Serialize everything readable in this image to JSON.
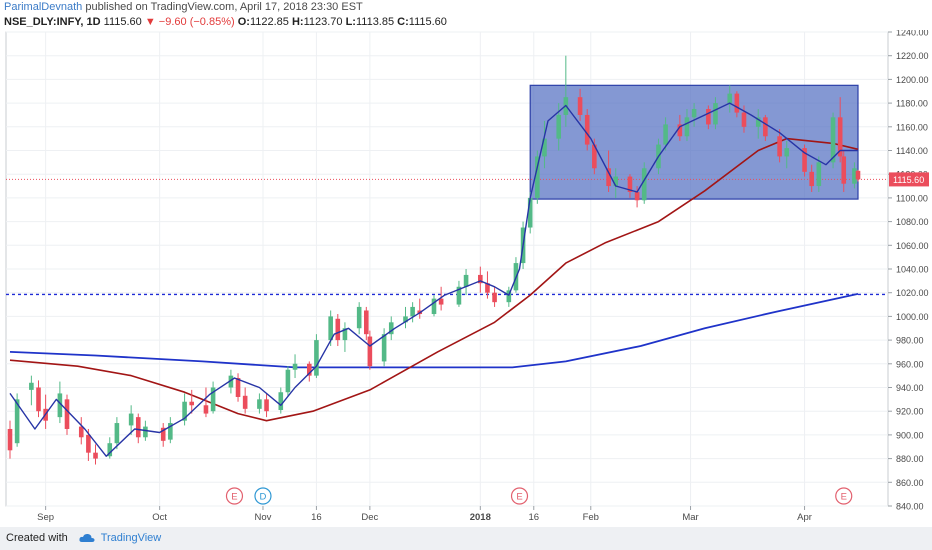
{
  "header": {
    "author": "ParimalDevnath",
    "published": "published on TradingView.com, April 17, 2018 23:30 EST",
    "symbol": "NSE_DLY:INFY, 1D",
    "last": "1115.60",
    "change": "▼ −9.60 (−0.85%)",
    "open_label": "O:",
    "open": "1122.85",
    "high_label": "H:",
    "high": "1123.70",
    "low_label": "L:",
    "low": "1113.85",
    "close_label": "C:",
    "close": "1115.60"
  },
  "footer": {
    "created_with": "Created with",
    "brand": "TradingView"
  },
  "colors": {
    "up": "#53b987",
    "down": "#eb4d5c",
    "sma_short": "#2734a6",
    "sma_mid": "#a21515",
    "sma_long": "#1f33c9",
    "support_line": "#1f2bd6",
    "range_box": "#5470c2",
    "price_line": "#eb4d5c",
    "grid": "#eef0f3",
    "axis_text": "#4a4a4a"
  },
  "chart_data": {
    "type": "candlestick",
    "ylim": [
      840,
      1240
    ],
    "y_ticks": [
      840,
      860,
      880,
      900,
      920,
      940,
      960,
      980,
      1000,
      1020,
      1040,
      1060,
      1080,
      1100,
      1120,
      1140,
      1160,
      1180,
      1200,
      1220,
      1240
    ],
    "x_labels": [
      {
        "label": "Sep",
        "date": "2017-09-01"
      },
      {
        "label": "Oct",
        "date": "2017-10-03"
      },
      {
        "label": "Nov",
        "date": "2017-11-01"
      },
      {
        "label": "16",
        "date": "2017-11-16"
      },
      {
        "label": "Dec",
        "date": "2017-12-01"
      },
      {
        "label": "2018",
        "date": "2018-01-01"
      },
      {
        "label": "16",
        "date": "2018-01-16"
      },
      {
        "label": "Feb",
        "date": "2018-02-01"
      },
      {
        "label": "Mar",
        "date": "2018-03-01"
      },
      {
        "label": "Apr",
        "date": "2018-04-02"
      }
    ],
    "date_range": [
      "2017-08-22",
      "2018-04-17"
    ],
    "last_price": 1115.6,
    "support_level": 1018.5,
    "range_box": {
      "start": "2018-01-15",
      "end": "2018-04-17",
      "low": 1099,
      "high": 1195
    },
    "events": [
      {
        "label": "E",
        "date": "2017-10-24",
        "kind": "earnings"
      },
      {
        "label": "D",
        "date": "2017-11-01",
        "kind": "dividend"
      },
      {
        "label": "E",
        "date": "2018-01-12",
        "kind": "earnings"
      },
      {
        "label": "E",
        "date": "2018-04-13",
        "kind": "earnings"
      }
    ],
    "sma_long": [
      {
        "date": "2017-08-22",
        "value": 970
      },
      {
        "date": "2017-09-15",
        "value": 967
      },
      {
        "date": "2017-10-15",
        "value": 962
      },
      {
        "date": "2017-11-10",
        "value": 957
      },
      {
        "date": "2017-12-15",
        "value": 957
      },
      {
        "date": "2018-01-10",
        "value": 957
      },
      {
        "date": "2018-01-25",
        "value": 962
      },
      {
        "date": "2018-02-15",
        "value": 975
      },
      {
        "date": "2018-03-05",
        "value": 990
      },
      {
        "date": "2018-03-25",
        "value": 1004
      },
      {
        "date": "2018-04-17",
        "value": 1019
      }
    ],
    "sma_mid": [
      {
        "date": "2017-08-22",
        "value": 963
      },
      {
        "date": "2017-09-10",
        "value": 958
      },
      {
        "date": "2017-09-25",
        "value": 950
      },
      {
        "date": "2017-10-10",
        "value": 936
      },
      {
        "date": "2017-10-25",
        "value": 918
      },
      {
        "date": "2017-11-02",
        "value": 912
      },
      {
        "date": "2017-11-15",
        "value": 920
      },
      {
        "date": "2017-12-01",
        "value": 938
      },
      {
        "date": "2017-12-20",
        "value": 970
      },
      {
        "date": "2018-01-05",
        "value": 995
      },
      {
        "date": "2018-01-15",
        "value": 1018
      },
      {
        "date": "2018-01-25",
        "value": 1045
      },
      {
        "date": "2018-02-05",
        "value": 1062
      },
      {
        "date": "2018-02-20",
        "value": 1080
      },
      {
        "date": "2018-03-05",
        "value": 1106
      },
      {
        "date": "2018-03-20",
        "value": 1140
      },
      {
        "date": "2018-03-28",
        "value": 1150
      },
      {
        "date": "2018-04-10",
        "value": 1146
      },
      {
        "date": "2018-04-17",
        "value": 1141
      }
    ],
    "sma_short": [
      {
        "date": "2017-08-22",
        "value": 935
      },
      {
        "date": "2017-08-29",
        "value": 905
      },
      {
        "date": "2017-09-04",
        "value": 930
      },
      {
        "date": "2017-09-12",
        "value": 905
      },
      {
        "date": "2017-09-18",
        "value": 882
      },
      {
        "date": "2017-09-26",
        "value": 905
      },
      {
        "date": "2017-10-03",
        "value": 902
      },
      {
        "date": "2017-10-10",
        "value": 914
      },
      {
        "date": "2017-10-17",
        "value": 934
      },
      {
        "date": "2017-10-24",
        "value": 948
      },
      {
        "date": "2017-10-31",
        "value": 940
      },
      {
        "date": "2017-11-06",
        "value": 925
      },
      {
        "date": "2017-11-10",
        "value": 940
      },
      {
        "date": "2017-11-16",
        "value": 958
      },
      {
        "date": "2017-11-21",
        "value": 985
      },
      {
        "date": "2017-11-25",
        "value": 990
      },
      {
        "date": "2017-12-01",
        "value": 975
      },
      {
        "date": "2017-12-08",
        "value": 990
      },
      {
        "date": "2017-12-15",
        "value": 1003
      },
      {
        "date": "2017-12-22",
        "value": 1018
      },
      {
        "date": "2018-01-01",
        "value": 1030
      },
      {
        "date": "2018-01-05",
        "value": 1025
      },
      {
        "date": "2018-01-09",
        "value": 1018
      },
      {
        "date": "2018-01-12",
        "value": 1040
      },
      {
        "date": "2018-01-15",
        "value": 1100
      },
      {
        "date": "2018-01-20",
        "value": 1165
      },
      {
        "date": "2018-01-25",
        "value": 1178
      },
      {
        "date": "2018-02-01",
        "value": 1150
      },
      {
        "date": "2018-02-08",
        "value": 1110
      },
      {
        "date": "2018-02-14",
        "value": 1105
      },
      {
        "date": "2018-02-20",
        "value": 1135
      },
      {
        "date": "2018-02-26",
        "value": 1160
      },
      {
        "date": "2018-03-05",
        "value": 1170
      },
      {
        "date": "2018-03-12",
        "value": 1180
      },
      {
        "date": "2018-03-18",
        "value": 1170
      },
      {
        "date": "2018-03-26",
        "value": 1155
      },
      {
        "date": "2018-04-02",
        "value": 1138
      },
      {
        "date": "2018-04-08",
        "value": 1128
      },
      {
        "date": "2018-04-12",
        "value": 1140
      },
      {
        "date": "2018-04-17",
        "value": 1140
      }
    ],
    "candles": [
      {
        "date": "2017-08-22",
        "o": 905,
        "h": 912,
        "l": 880,
        "c": 887
      },
      {
        "date": "2017-08-24",
        "o": 893,
        "h": 935,
        "l": 890,
        "c": 930
      },
      {
        "date": "2017-08-28",
        "o": 938,
        "h": 950,
        "l": 925,
        "c": 944
      },
      {
        "date": "2017-08-30",
        "o": 940,
        "h": 946,
        "l": 915,
        "c": 920
      },
      {
        "date": "2017-09-01",
        "o": 922,
        "h": 934,
        "l": 905,
        "c": 912
      },
      {
        "date": "2017-09-05",
        "o": 915,
        "h": 945,
        "l": 910,
        "c": 935
      },
      {
        "date": "2017-09-07",
        "o": 930,
        "h": 934,
        "l": 900,
        "c": 905
      },
      {
        "date": "2017-09-11",
        "o": 907,
        "h": 915,
        "l": 892,
        "c": 898
      },
      {
        "date": "2017-09-13",
        "o": 900,
        "h": 905,
        "l": 878,
        "c": 885
      },
      {
        "date": "2017-09-15",
        "o": 885,
        "h": 892,
        "l": 875,
        "c": 880
      },
      {
        "date": "2017-09-19",
        "o": 882,
        "h": 898,
        "l": 880,
        "c": 893
      },
      {
        "date": "2017-09-21",
        "o": 893,
        "h": 915,
        "l": 888,
        "c": 910
      },
      {
        "date": "2017-09-25",
        "o": 908,
        "h": 925,
        "l": 900,
        "c": 918
      },
      {
        "date": "2017-09-27",
        "o": 915,
        "h": 918,
        "l": 893,
        "c": 898
      },
      {
        "date": "2017-09-29",
        "o": 898,
        "h": 912,
        "l": 895,
        "c": 907
      },
      {
        "date": "2017-10-04",
        "o": 906,
        "h": 910,
        "l": 890,
        "c": 895
      },
      {
        "date": "2017-10-06",
        "o": 896,
        "h": 915,
        "l": 893,
        "c": 910
      },
      {
        "date": "2017-10-10",
        "o": 912,
        "h": 935,
        "l": 908,
        "c": 928
      },
      {
        "date": "2017-10-12",
        "o": 928,
        "h": 938,
        "l": 918,
        "c": 925
      },
      {
        "date": "2017-10-16",
        "o": 925,
        "h": 940,
        "l": 915,
        "c": 918
      },
      {
        "date": "2017-10-18",
        "o": 920,
        "h": 945,
        "l": 918,
        "c": 940
      },
      {
        "date": "2017-10-23",
        "o": 940,
        "h": 955,
        "l": 935,
        "c": 950
      },
      {
        "date": "2017-10-25",
        "o": 948,
        "h": 952,
        "l": 928,
        "c": 932
      },
      {
        "date": "2017-10-27",
        "o": 933,
        "h": 940,
        "l": 918,
        "c": 922
      },
      {
        "date": "2017-10-31",
        "o": 922,
        "h": 935,
        "l": 918,
        "c": 930
      },
      {
        "date": "2017-11-02",
        "o": 930,
        "h": 935,
        "l": 915,
        "c": 920
      },
      {
        "date": "2017-11-06",
        "o": 921,
        "h": 940,
        "l": 918,
        "c": 936
      },
      {
        "date": "2017-11-08",
        "o": 936,
        "h": 958,
        "l": 932,
        "c": 955
      },
      {
        "date": "2017-11-10",
        "o": 955,
        "h": 968,
        "l": 948,
        "c": 960
      },
      {
        "date": "2017-11-14",
        "o": 960,
        "h": 962,
        "l": 945,
        "c": 950
      },
      {
        "date": "2017-11-16",
        "o": 950,
        "h": 985,
        "l": 948,
        "c": 980
      },
      {
        "date": "2017-11-20",
        "o": 980,
        "h": 1005,
        "l": 975,
        "c": 1000
      },
      {
        "date": "2017-11-22",
        "o": 998,
        "h": 1002,
        "l": 975,
        "c": 980
      },
      {
        "date": "2017-11-24",
        "o": 980,
        "h": 995,
        "l": 970,
        "c": 990
      },
      {
        "date": "2017-11-28",
        "o": 990,
        "h": 1012,
        "l": 985,
        "c": 1008
      },
      {
        "date": "2017-11-30",
        "o": 1005,
        "h": 1008,
        "l": 980,
        "c": 985
      },
      {
        "date": "2017-12-01",
        "o": 983,
        "h": 988,
        "l": 955,
        "c": 958
      },
      {
        "date": "2017-12-05",
        "o": 962,
        "h": 990,
        "l": 958,
        "c": 985
      },
      {
        "date": "2017-12-07",
        "o": 985,
        "h": 1000,
        "l": 980,
        "c": 995
      },
      {
        "date": "2017-12-11",
        "o": 995,
        "h": 1008,
        "l": 990,
        "c": 1000
      },
      {
        "date": "2017-12-13",
        "o": 1000,
        "h": 1012,
        "l": 995,
        "c": 1008
      },
      {
        "date": "2017-12-15",
        "o": 1005,
        "h": 1015,
        "l": 998,
        "c": 1002
      },
      {
        "date": "2017-12-19",
        "o": 1002,
        "h": 1018,
        "l": 1000,
        "c": 1015
      },
      {
        "date": "2017-12-21",
        "o": 1015,
        "h": 1025,
        "l": 1005,
        "c": 1010
      },
      {
        "date": "2017-12-26",
        "o": 1010,
        "h": 1030,
        "l": 1008,
        "c": 1025
      },
      {
        "date": "2017-12-28",
        "o": 1025,
        "h": 1040,
        "l": 1018,
        "c": 1035
      },
      {
        "date": "2018-01-01",
        "o": 1035,
        "h": 1042,
        "l": 1020,
        "c": 1028
      },
      {
        "date": "2018-01-03",
        "o": 1028,
        "h": 1038,
        "l": 1015,
        "c": 1020
      },
      {
        "date": "2018-01-05",
        "o": 1020,
        "h": 1025,
        "l": 1008,
        "c": 1012
      },
      {
        "date": "2018-01-09",
        "o": 1012,
        "h": 1025,
        "l": 1008,
        "c": 1022
      },
      {
        "date": "2018-01-11",
        "o": 1022,
        "h": 1050,
        "l": 1020,
        "c": 1045
      },
      {
        "date": "2018-01-13",
        "o": 1045,
        "h": 1080,
        "l": 1040,
        "c": 1075
      },
      {
        "date": "2018-01-15",
        "o": 1075,
        "h": 1105,
        "l": 1070,
        "c": 1100
      },
      {
        "date": "2018-01-17",
        "o": 1100,
        "h": 1140,
        "l": 1095,
        "c": 1135
      },
      {
        "date": "2018-01-19",
        "o": 1135,
        "h": 1165,
        "l": 1125,
        "c": 1150
      },
      {
        "date": "2018-01-23",
        "o": 1150,
        "h": 1180,
        "l": 1140,
        "c": 1170
      },
      {
        "date": "2018-01-25",
        "o": 1170,
        "h": 1220,
        "l": 1160,
        "c": 1185
      },
      {
        "date": "2018-01-29",
        "o": 1185,
        "h": 1192,
        "l": 1165,
        "c": 1170
      },
      {
        "date": "2018-01-31",
        "o": 1170,
        "h": 1175,
        "l": 1140,
        "c": 1145
      },
      {
        "date": "2018-02-02",
        "o": 1145,
        "h": 1150,
        "l": 1120,
        "c": 1125
      },
      {
        "date": "2018-02-06",
        "o": 1125,
        "h": 1140,
        "l": 1105,
        "c": 1110
      },
      {
        "date": "2018-02-08",
        "o": 1110,
        "h": 1125,
        "l": 1100,
        "c": 1118
      },
      {
        "date": "2018-02-12",
        "o": 1118,
        "h": 1120,
        "l": 1100,
        "c": 1105
      },
      {
        "date": "2018-02-14",
        "o": 1105,
        "h": 1110,
        "l": 1092,
        "c": 1098
      },
      {
        "date": "2018-02-16",
        "o": 1098,
        "h": 1130,
        "l": 1095,
        "c": 1125
      },
      {
        "date": "2018-02-20",
        "o": 1125,
        "h": 1150,
        "l": 1120,
        "c": 1145
      },
      {
        "date": "2018-02-22",
        "o": 1145,
        "h": 1168,
        "l": 1140,
        "c": 1162
      },
      {
        "date": "2018-02-26",
        "o": 1162,
        "h": 1170,
        "l": 1148,
        "c": 1152
      },
      {
        "date": "2018-02-28",
        "o": 1152,
        "h": 1175,
        "l": 1148,
        "c": 1168
      },
      {
        "date": "2018-03-02",
        "o": 1168,
        "h": 1180,
        "l": 1160,
        "c": 1175
      },
      {
        "date": "2018-03-06",
        "o": 1175,
        "h": 1178,
        "l": 1158,
        "c": 1162
      },
      {
        "date": "2018-03-08",
        "o": 1162,
        "h": 1185,
        "l": 1158,
        "c": 1180
      },
      {
        "date": "2018-03-12",
        "o": 1180,
        "h": 1195,
        "l": 1172,
        "c": 1188
      },
      {
        "date": "2018-03-14",
        "o": 1188,
        "h": 1190,
        "l": 1168,
        "c": 1172
      },
      {
        "date": "2018-03-16",
        "o": 1172,
        "h": 1178,
        "l": 1155,
        "c": 1160
      },
      {
        "date": "2018-03-20",
        "o": 1160,
        "h": 1175,
        "l": 1150,
        "c": 1168
      },
      {
        "date": "2018-03-22",
        "o": 1168,
        "h": 1170,
        "l": 1148,
        "c": 1152
      },
      {
        "date": "2018-03-26",
        "o": 1152,
        "h": 1158,
        "l": 1130,
        "c": 1135
      },
      {
        "date": "2018-03-28",
        "o": 1135,
        "h": 1148,
        "l": 1125,
        "c": 1142
      },
      {
        "date": "2018-04-02",
        "o": 1142,
        "h": 1145,
        "l": 1118,
        "c": 1122
      },
      {
        "date": "2018-04-04",
        "o": 1122,
        "h": 1128,
        "l": 1105,
        "c": 1110
      },
      {
        "date": "2018-04-06",
        "o": 1110,
        "h": 1135,
        "l": 1105,
        "c": 1130
      },
      {
        "date": "2018-04-10",
        "o": 1130,
        "h": 1172,
        "l": 1125,
        "c": 1168
      },
      {
        "date": "2018-04-12",
        "o": 1168,
        "h": 1185,
        "l": 1130,
        "c": 1135
      },
      {
        "date": "2018-04-13",
        "o": 1135,
        "h": 1140,
        "l": 1105,
        "c": 1112
      },
      {
        "date": "2018-04-16",
        "o": 1112,
        "h": 1130,
        "l": 1108,
        "c": 1125
      },
      {
        "date": "2018-04-17",
        "o": 1122.85,
        "h": 1123.7,
        "l": 1113.85,
        "c": 1115.6
      }
    ]
  }
}
